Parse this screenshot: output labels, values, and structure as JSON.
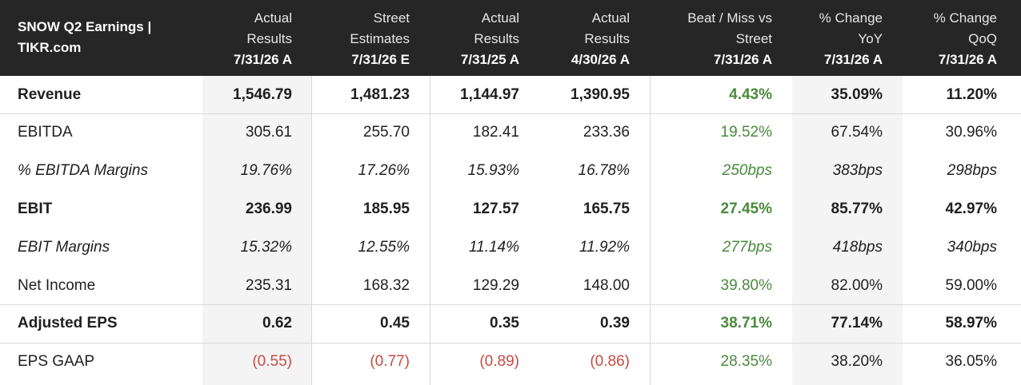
{
  "header": {
    "title_line1": "SNOW Q2 Earnings |",
    "title_line2": "TIKR.com",
    "columns": [
      {
        "l1": "Actual",
        "l2": "Results",
        "l3": "7/31/26 A"
      },
      {
        "l1": "Street",
        "l2": "Estimates",
        "l3": "7/31/26 E"
      },
      {
        "l1": "Actual",
        "l2": "Results",
        "l3": "7/31/25 A"
      },
      {
        "l1": "Actual",
        "l2": "Results",
        "l3": "4/30/26 A"
      },
      {
        "l1": "Beat / Miss vs",
        "l2": "Street",
        "l3": "7/31/26 A"
      },
      {
        "l1": "% Change",
        "l2": "YoY",
        "l3": "7/31/26 A"
      },
      {
        "l1": "% Change",
        "l2": "QoQ",
        "l3": "7/31/26 A"
      }
    ]
  },
  "rows": [
    {
      "label": "Revenue",
      "values": [
        "1,546.79",
        "1,481.23",
        "1,144.97",
        "1,390.95",
        "4.43%",
        "35.09%",
        "11.20%"
      ]
    },
    {
      "label": "EBITDA",
      "values": [
        "305.61",
        "255.70",
        "182.41",
        "233.36",
        "19.52%",
        "67.54%",
        "30.96%"
      ]
    },
    {
      "label": "% EBITDA Margins",
      "values": [
        "19.76%",
        "17.26%",
        "15.93%",
        "16.78%",
        "250bps",
        "383bps",
        "298bps"
      ]
    },
    {
      "label": "EBIT",
      "values": [
        "236.99",
        "185.95",
        "127.57",
        "165.75",
        "27.45%",
        "85.77%",
        "42.97%"
      ]
    },
    {
      "label": "EBIT Margins",
      "values": [
        "15.32%",
        "12.55%",
        "11.14%",
        "11.92%",
        "277bps",
        "418bps",
        "340bps"
      ]
    },
    {
      "label": "Net Income",
      "values": [
        "235.31",
        "168.32",
        "129.29",
        "148.00",
        "39.80%",
        "82.00%",
        "59.00%"
      ]
    },
    {
      "label": "Adjusted EPS",
      "values": [
        "0.62",
        "0.45",
        "0.35",
        "0.39",
        "38.71%",
        "77.14%",
        "58.97%"
      ]
    },
    {
      "label": "EPS GAAP",
      "values": [
        "(0.55)",
        "(0.77)",
        "(0.89)",
        "(0.86)",
        "28.35%",
        "38.20%",
        "36.05%"
      ]
    }
  ],
  "colors": {
    "header_bg": "#262626",
    "positive": "#4a8a3c",
    "negative": "#c94a42",
    "shaded_column": "#f4f4f4"
  }
}
